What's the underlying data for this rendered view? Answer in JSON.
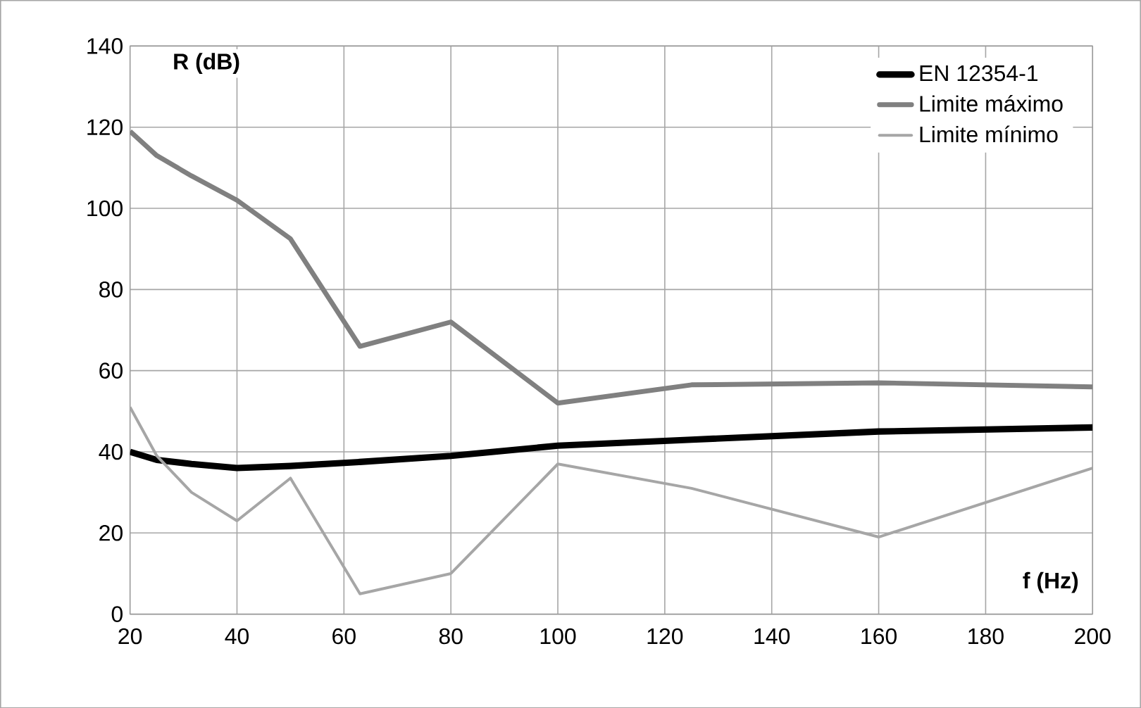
{
  "chart_data": {
    "type": "line",
    "xlabel": "f (Hz)",
    "ylabel": "R (dB)",
    "x": [
      20,
      25,
      31.5,
      40,
      50,
      63,
      80,
      100,
      125,
      160,
      200
    ],
    "series": [
      {
        "name": "EN 12354-1",
        "color": "#000000",
        "values": [
          40,
          38,
          37,
          36,
          36.5,
          37.5,
          39,
          41.5,
          43,
          45,
          46
        ]
      },
      {
        "name": "Limite máximo",
        "color": "#808080",
        "values": [
          119,
          113,
          108,
          102,
          92.5,
          66,
          72,
          52,
          56.5,
          57,
          56
        ]
      },
      {
        "name": "Limite mínimo",
        "color": "#a6a6a6",
        "values": [
          51,
          39,
          30,
          23,
          33.5,
          5,
          10,
          37,
          31,
          19,
          36
        ]
      }
    ],
    "xlim": [
      20,
      200
    ],
    "ylim": [
      0,
      140
    ],
    "xticks": [
      20,
      40,
      60,
      80,
      100,
      120,
      140,
      160,
      180,
      200
    ],
    "yticks": [
      0,
      20,
      40,
      60,
      80,
      100,
      120,
      140
    ],
    "grid": true,
    "legend": "top right",
    "marker": "none",
    "line_style": "solid"
  }
}
